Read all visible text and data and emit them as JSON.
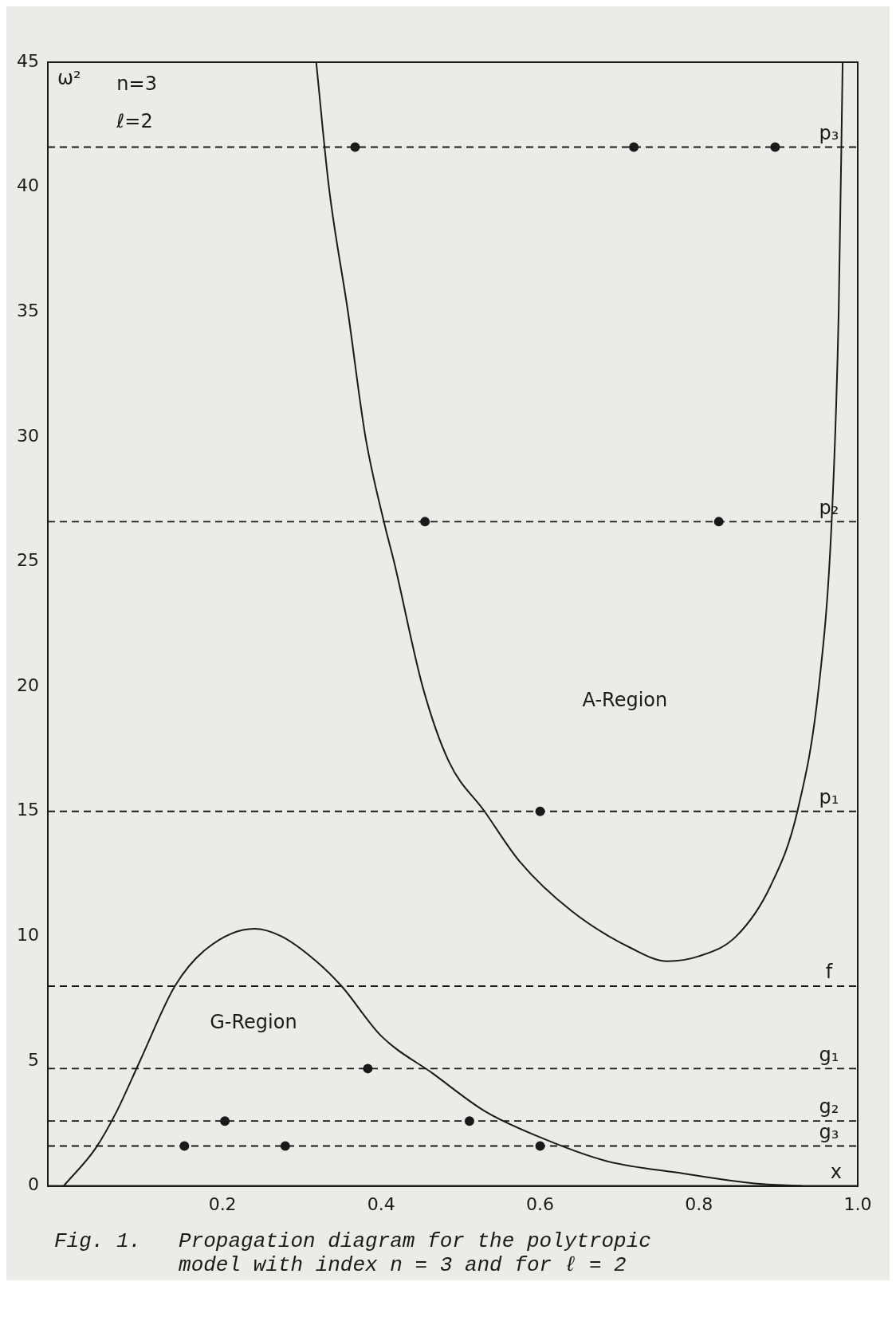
{
  "chart_data": {
    "type": "line",
    "ylabel": "ω²",
    "xlabel": "x",
    "annotations": [
      "n=3",
      "ℓ=2",
      "A-Region",
      "G-Region",
      "Fig. 1.   Propagation diagram for the polytropic\n          model with index n = 3 and for ℓ = 2"
    ],
    "xlim": [
      -0.02,
      1.0
    ],
    "xticks": [
      0.2,
      0.4,
      0.6,
      0.8,
      {
        "value": 1,
        "label": "1.0"
      }
    ],
    "ylim": [
      0,
      45
    ],
    "yticks": [
      0,
      5,
      10,
      15,
      20,
      25,
      30,
      35,
      40,
      45
    ],
    "grid": false,
    "legend": false,
    "line_style": "solid",
    "marker": "none",
    "series": [
      {
        "color": "#1a1a1a",
        "x": [
          0.318,
          0.334,
          0.358,
          0.38,
          0.404,
          0.416,
          0.452,
          0.485,
          0.53,
          0.574,
          0.64,
          0.716,
          0.76,
          0.8,
          0.847,
          0.89,
          0.924,
          0.951,
          0.967,
          0.976,
          0.981
        ],
        "values": [
          45,
          40,
          35,
          30,
          26.5,
          25,
          20,
          17,
          15,
          13,
          11,
          9.5,
          9,
          9.2,
          10,
          12,
          15,
          20,
          26.5,
          35,
          45
        ]
      },
      {
        "color": "#1a1a1a",
        "x": [
          0,
          0.04,
          0.067,
          0.096,
          0.14,
          0.18,
          0.24,
          0.274,
          0.318,
          0.35,
          0.4,
          0.465,
          0.53,
          0.596,
          0.683,
          0.78,
          0.87,
          0.93
        ],
        "values": [
          0,
          1.5,
          3,
          5,
          8,
          9.5,
          10.3,
          10,
          9,
          8,
          6,
          4.5,
          3,
          2,
          1,
          0.5,
          0.1,
          0
        ]
      },
      {
        "type": "scatter",
        "marker": "circle",
        "color": "#1a1a1a",
        "x": [
          0.367,
          0.718,
          0.896,
          0.455,
          0.825,
          0.6,
          0.383,
          0.203,
          0.511,
          0.152,
          0.279,
          0.6
        ],
        "values": [
          41.6,
          41.6,
          41.6,
          26.6,
          26.6,
          15,
          4.7,
          2.6,
          2.6,
          1.6,
          1.6,
          1.6
        ]
      }
    ],
    "ref_lines": [
      {
        "axis": "y",
        "value": 41.6,
        "label": "p₃",
        "line_style": "dashed",
        "color": "#1a1a1a"
      },
      {
        "axis": "y",
        "value": 26.6,
        "label": "p₂",
        "line_style": "dashed",
        "color": "#1a1a1a"
      },
      {
        "axis": "y",
        "value": 15,
        "label": "p₁",
        "line_style": "dashed",
        "color": "#1a1a1a"
      },
      {
        "axis": "y",
        "value": 8,
        "label": "f",
        "line_style": "dashed",
        "color": "#1a1a1a"
      },
      {
        "axis": "y",
        "value": 4.7,
        "label": "g₁",
        "line_style": "dashed",
        "color": "#1a1a1a"
      },
      {
        "axis": "y",
        "value": 2.6,
        "label": "g₂",
        "line_style": "dashed",
        "color": "#1a1a1a"
      },
      {
        "axis": "y",
        "value": 1.6,
        "label": "g₃",
        "line_style": "dashed",
        "color": "#1a1a1a"
      }
    ]
  }
}
